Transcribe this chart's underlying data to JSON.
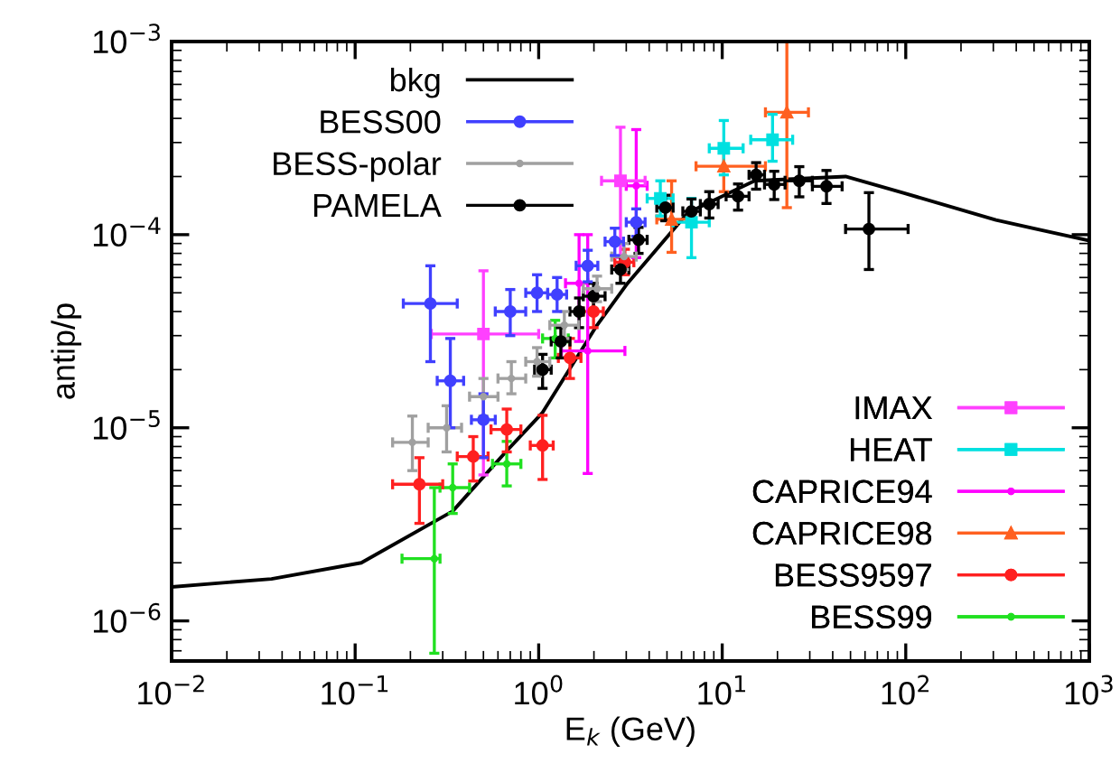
{
  "chart_data": {
    "type": "scatter",
    "xlabel": "E$_{k}$ (GeV)",
    "ylabel": "antip/p",
    "log": "xy",
    "grid": false,
    "xlim": [
      0.01,
      1000
    ],
    "ylim": [
      6.2e-07,
      0.001
    ],
    "xticks": [
      {
        "value": 0.01,
        "label": "10$^{−2}$"
      },
      {
        "value": 0.1,
        "label": "10$^{−1}$"
      },
      {
        "value": 1,
        "label": "10$^{0}$"
      },
      {
        "value": 10,
        "label": "10$^{1}$"
      },
      {
        "value": 100,
        "label": "10$^{2}$"
      },
      {
        "value": 1000,
        "label": "10$^{3}$"
      }
    ],
    "yticks": [
      {
        "value": 1e-06,
        "label": "10$^{−6}$"
      },
      {
        "value": 1e-05,
        "label": "10$^{−5}$"
      },
      {
        "value": 0.0001,
        "label": "10$^{−4}$"
      },
      {
        "value": 0.001,
        "label": "10$^{−3}$"
      }
    ],
    "legend": "top left",
    "series": [
      {
        "name": "bkg",
        "type": "line",
        "color": "#000000",
        "marker": "none",
        "line_style": "solid",
        "x": [
          0.01,
          0.035,
          0.108,
          0.34,
          0.67,
          1.05,
          2.08,
          3.05,
          6.5,
          15,
          47,
          98,
          310,
          1000
        ],
        "values": [
          1.5e-06,
          1.65e-06,
          2e-06,
          3.7e-06,
          7.6e-06,
          1.2e-05,
          3.4e-05,
          5.6e-05,
          0.00013,
          0.00019,
          0.0002,
          0.000164,
          0.000119,
          9.3e-05
        ]
      },
      {
        "name": "BESS00",
        "color": "#4040ff",
        "marker": "circle",
        "x": [
          0.257,
          0.33,
          0.5,
          0.7,
          0.98,
          1.26,
          1.85,
          2.6,
          3.4
        ],
        "values": [
          4.4e-05,
          1.75e-05,
          1.1e-05,
          4e-05,
          5e-05,
          4.9e-05,
          6.9e-05,
          9.2e-05,
          0.000116
        ],
        "errors": [
          [
            2.2e-05,
            6.9e-05
          ],
          [
            1e-05,
            2.9e-05
          ],
          [
            7e-06,
            1.5e-05
          ],
          [
            3e-05,
            5.2e-05
          ],
          [
            4e-05,
            6.2e-05
          ],
          [
            4e-05,
            6e-05
          ],
          [
            5.7e-05,
            8.3e-05
          ],
          [
            7.8e-05,
            0.000108
          ],
          [
            9.8e-05,
            0.000136
          ]
        ],
        "xerrors": [
          [
            0.183,
            0.36
          ],
          [
            0.28,
            0.39
          ],
          [
            0.43,
            0.58
          ],
          [
            0.58,
            0.85
          ],
          [
            0.85,
            1.12
          ],
          [
            1.12,
            1.42
          ],
          [
            1.6,
            2.1
          ],
          [
            2.3,
            2.9
          ],
          [
            3.0,
            3.8
          ]
        ]
      },
      {
        "name": "BESS-polar",
        "color": "#a0a0a0",
        "marker": "dot",
        "x": [
          0.205,
          0.315,
          0.5,
          0.71,
          0.98,
          1.38,
          2.08,
          2.92
        ],
        "values": [
          8.4e-06,
          1e-05,
          1.45e-05,
          1.8e-05,
          2.2e-05,
          3.4e-05,
          5.25e-05,
          7.7e-05
        ],
        "errors": [
          [
            6e-06,
            1.15e-05
          ],
          [
            7.5e-06,
            1.3e-05
          ],
          [
            1.15e-05,
            1.8e-05
          ],
          [
            1.5e-05,
            2.2e-05
          ],
          [
            1.85e-05,
            2.6e-05
          ],
          [
            2.9e-05,
            4e-05
          ],
          [
            4.5e-05,
            6.1e-05
          ],
          [
            6.6e-05,
            9e-05
          ]
        ],
        "xerrors": [
          [
            0.16,
            0.25
          ],
          [
            0.25,
            0.38
          ],
          [
            0.42,
            0.6
          ],
          [
            0.6,
            0.85
          ],
          [
            0.85,
            1.15
          ],
          [
            1.15,
            1.65
          ],
          [
            1.75,
            2.5
          ],
          [
            2.5,
            3.4
          ]
        ]
      },
      {
        "name": "PAMELA",
        "color": "#000000",
        "marker": "circle",
        "x": [
          1.05,
          1.32,
          1.66,
          1.99,
          2.79,
          3.5,
          4.9,
          6.8,
          8.5,
          12.2,
          15.3,
          19.2,
          26.3,
          37,
          63
        ],
        "values": [
          2e-05,
          2.8e-05,
          4e-05,
          4.8e-05,
          6.6e-05,
          9.4e-05,
          0.000138,
          0.000132,
          0.000144,
          0.000158,
          0.000204,
          0.000182,
          0.00019,
          0.000178,
          0.000107
        ],
        "errors": [
          [
            1.6e-05,
            2.4e-05
          ],
          [
            2.3e-05,
            3.3e-05
          ],
          [
            3.3e-05,
            4.7e-05
          ],
          [
            4e-05,
            5.6e-05
          ],
          [
            5.6e-05,
            7.7e-05
          ],
          [
            8e-05,
            0.000109
          ],
          [
            0.000118,
            0.00016
          ],
          [
            0.000112,
            0.000153
          ],
          [
            0.000122,
            0.000167
          ],
          [
            0.000134,
            0.000183
          ],
          [
            0.000172,
            0.000236
          ],
          [
            0.000152,
            0.000213
          ],
          [
            0.000157,
            0.000225
          ],
          [
            0.000145,
            0.000215
          ],
          [
            6.6e-05,
            0.000165
          ]
        ],
        "xerrors": [
          [
            0.95,
            1.17
          ],
          [
            1.17,
            1.48
          ],
          [
            1.48,
            1.75
          ],
          [
            1.75,
            2.3
          ],
          [
            2.5,
            3.1
          ],
          [
            3.1,
            3.9
          ],
          [
            4.4,
            5.4
          ],
          [
            6.1,
            7.6
          ],
          [
            7.6,
            9.5
          ],
          [
            10.5,
            14.0
          ],
          [
            14.0,
            17.0
          ],
          [
            17.0,
            22.0
          ],
          [
            22,
            31
          ],
          [
            31,
            45
          ],
          [
            47,
            103
          ]
        ]
      },
      {
        "name": "IMAX",
        "color": "#ff40ff",
        "marker": "square",
        "x": [
          0.5,
          2.79
        ],
        "values": [
          3.06e-05,
          0.00019
        ],
        "errors": [
          [
            5.7e-06,
            6.5e-05
          ],
          [
            7.6e-05,
            0.00036
          ]
        ],
        "xerrors": [
          [
            0.26,
            1.0
          ],
          [
            2.2,
            3.8
          ]
        ]
      },
      {
        "name": "HEAT",
        "color": "#00e0e0",
        "marker": "square",
        "x": [
          4.6,
          6.8,
          10.2,
          18.8
        ],
        "values": [
          0.000154,
          0.000116,
          0.00028,
          0.00031
        ],
        "errors": [
          [
            0.000125,
            0.00019
          ],
          [
            7.6e-05,
            0.000154
          ],
          [
            0.000204,
            0.00039
          ],
          [
            0.00024,
            0.00042
          ]
        ],
        "xerrors": [
          [
            3.9,
            5.4
          ],
          [
            5.4,
            8.5
          ],
          [
            8.5,
            13
          ],
          [
            14.3,
            24.2
          ]
        ]
      },
      {
        "name": "CAPRICE94",
        "color": "#ff00ff",
        "marker": "dot",
        "x": [
          1.66,
          1.85,
          3.4
        ],
        "values": [
          5.6e-05,
          2.5e-05,
          0.000179
        ],
        "errors": [
          [
            2.8e-05,
            0.0001
          ],
          [
            5.8e-06,
            0.0001
          ],
          [
            7.6e-05,
            0.00035
          ]
        ],
        "xerrors": [
          [
            1.4,
            1.85
          ],
          [
            1.33,
            2.95
          ],
          [
            3.0,
            3.9
          ]
        ]
      },
      {
        "name": "CAPRICE98",
        "color": "#ff6020",
        "marker": "triangle",
        "x": [
          5.3,
          10.2,
          22.5
        ],
        "values": [
          0.00012,
          0.000226,
          0.00043
        ],
        "errors": [
          [
            8.1e-05,
            0.00019
          ],
          [
            0.000167,
            0.00029
          ],
          [
            0.000138,
            0.001
          ]
        ],
        "xerrors": [
          [
            4.4,
            6.5
          ],
          [
            7.2,
            17.2
          ],
          [
            17.2,
            29.5
          ]
        ]
      },
      {
        "name": "BESS9597",
        "color": "#ff2020",
        "marker": "circle",
        "x": [
          0.224,
          0.44,
          0.67,
          1.05,
          1.48,
          1.99,
          2.95
        ],
        "values": [
          5.1e-06,
          7.1e-06,
          9.8e-06,
          8.1e-06,
          2.3e-05,
          4e-05,
          7.2e-05
        ],
        "errors": [
          [
            3.2e-06,
            7e-06
          ],
          [
            5.3e-06,
            9e-06
          ],
          [
            7.5e-06,
            1.25e-05
          ],
          [
            5.4e-06,
            1.16e-05
          ],
          [
            1.8e-05,
            2.9e-05
          ],
          [
            3.3e-05,
            4.8e-05
          ],
          [
            6.2e-05,
            8.4e-05
          ]
        ],
        "xerrors": [
          [
            0.16,
            0.3
          ],
          [
            0.36,
            0.53
          ],
          [
            0.55,
            0.8
          ],
          [
            0.9,
            1.2
          ],
          [
            1.28,
            1.7
          ],
          [
            1.75,
            2.25
          ],
          [
            2.6,
            3.3
          ]
        ]
      },
      {
        "name": "BESS99",
        "color": "#20e020",
        "marker": "dot",
        "x": [
          0.27,
          0.34,
          0.67,
          1.23
        ],
        "values": [
          2.1e-06,
          4.9e-06,
          6.5e-06,
          2.9e-05
        ],
        "errors": [
          [
            6.8e-07,
            4.9e-06
          ],
          [
            3.6e-06,
            6.5e-06
          ],
          [
            5e-06,
            8.5e-06
          ],
          [
            2.3e-05,
            3.6e-05
          ]
        ],
        "xerrors": [
          [
            0.18,
            0.29
          ],
          [
            0.29,
            0.42
          ],
          [
            0.56,
            0.8
          ],
          [
            1.05,
            1.45
          ]
        ]
      }
    ]
  }
}
